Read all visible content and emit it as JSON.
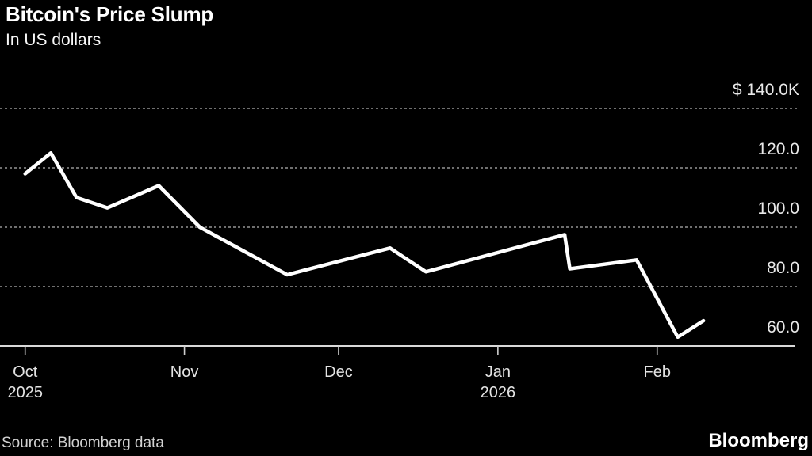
{
  "header": {
    "title": "Bitcoin's Price Slump",
    "subtitle": "In US dollars"
  },
  "footer": {
    "source": "Source: Bloomberg data",
    "logo": "Bloomberg"
  },
  "chart_data": {
    "type": "line",
    "title": "Bitcoin's Price Slump",
    "subtitle": "In US dollars",
    "unit": "thousand US dollars",
    "legend": "none",
    "grid": "horizontal-dashed",
    "series": [
      {
        "name": "Bitcoin price",
        "points": [
          {
            "date": "Oct 1",
            "day": 0,
            "value": 118
          },
          {
            "date": "Oct 6",
            "day": 5,
            "value": 125
          },
          {
            "date": "Oct 11",
            "day": 10,
            "value": 110
          },
          {
            "date": "Oct 17",
            "day": 16,
            "value": 106.5
          },
          {
            "date": "Oct 27",
            "day": 26,
            "value": 114
          },
          {
            "date": "Nov 3",
            "day": 34,
            "value": 100
          },
          {
            "date": "Nov 21",
            "day": 51,
            "value": 84
          },
          {
            "date": "Dec 11",
            "day": 71,
            "value": 93
          },
          {
            "date": "Dec 18",
            "day": 78,
            "value": 85
          },
          {
            "date": "Jan 14",
            "day": 105,
            "value": 97.5
          },
          {
            "date": "Jan 15",
            "day": 106,
            "value": 86
          },
          {
            "date": "Jan 28",
            "day": 119,
            "value": 89
          },
          {
            "date": "Feb 5",
            "day": 127,
            "value": 63
          },
          {
            "date": "Feb 10",
            "day": 132,
            "value": 68.5
          }
        ]
      }
    ],
    "y_axis": {
      "side": "right",
      "range": [
        60,
        145
      ],
      "baseline_value": 60,
      "gridline_values": [
        140,
        120,
        100,
        80
      ],
      "ticks": [
        {
          "label": "$ 140.0K",
          "value": 140
        },
        {
          "label": "120.0",
          "value": 120
        },
        {
          "label": "100.0",
          "value": 100
        },
        {
          "label": "80.0",
          "value": 80
        },
        {
          "label": "60.0",
          "value": 60
        }
      ]
    },
    "x_axis": {
      "months": [
        {
          "label": "Oct",
          "year": "2025",
          "day": 0
        },
        {
          "label": "Nov",
          "year": "",
          "day": 31
        },
        {
          "label": "Dec",
          "year": "",
          "day": 61
        },
        {
          "label": "Jan",
          "year": "2026",
          "day": 92
        },
        {
          "label": "Feb",
          "year": "",
          "day": 123
        }
      ]
    },
    "colors": {
      "background": "#000000",
      "line": "#ffffff",
      "gridline": "#949494",
      "baseline": "#d9d9d9",
      "text": "#e8e8e8"
    }
  }
}
